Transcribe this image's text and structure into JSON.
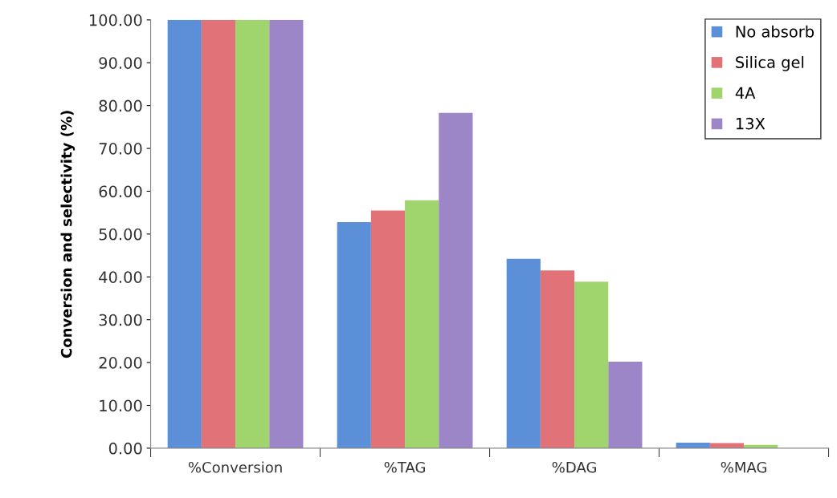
{
  "chart_data": {
    "type": "bar",
    "ylabel": "Conversion and selectivity (%)",
    "categories": [
      "%Conversion",
      "%TAG",
      "%DAG",
      "%MAG"
    ],
    "series": [
      {
        "name": "No absorb",
        "color": "#5b8fd8",
        "values": [
          100,
          52.8,
          44.2,
          1.3
        ]
      },
      {
        "name": "Silica gel",
        "color": "#e07278",
        "values": [
          100,
          55.5,
          41.5,
          1.2
        ]
      },
      {
        "name": "4A",
        "color": "#a0d46c",
        "values": [
          100,
          57.9,
          38.9,
          0.8
        ]
      },
      {
        "name": "13X",
        "color": "#9c86c8",
        "values": [
          100,
          78.3,
          20.2,
          0
        ]
      }
    ],
    "ylim": [
      0,
      100
    ],
    "yticks": [
      {
        "value": 0,
        "label": "0.00"
      },
      {
        "value": 10,
        "label": "10.00"
      },
      {
        "value": 20,
        "label": "20.00"
      },
      {
        "value": 30,
        "label": "30.00"
      },
      {
        "value": 40,
        "label": "40.00"
      },
      {
        "value": 50,
        "label": "50.00"
      },
      {
        "value": 60,
        "label": "60.00"
      },
      {
        "value": 70,
        "label": "70.00"
      },
      {
        "value": 80,
        "label": "80.00"
      },
      {
        "value": 90,
        "label": "90.00"
      },
      {
        "value": 100,
        "label": "100.00"
      }
    ],
    "grid": false,
    "legend": "top right"
  }
}
